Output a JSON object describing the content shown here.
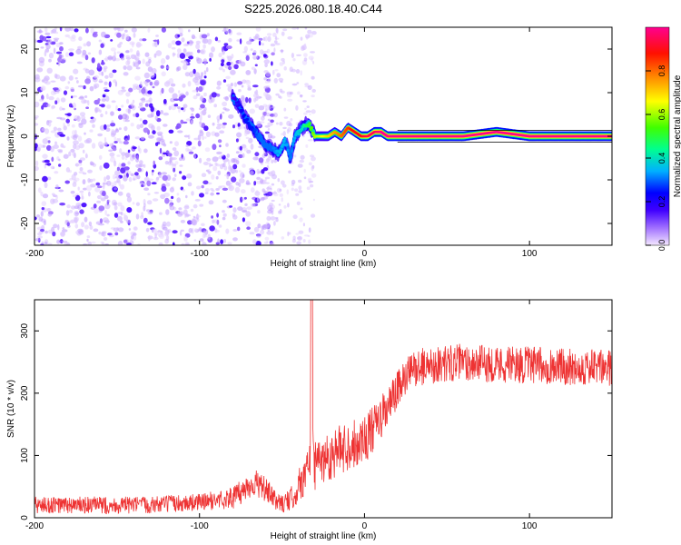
{
  "page": {
    "title": "S225.2026.080.18.40.C44"
  },
  "chart_data": [
    {
      "type": "heatmap",
      "title": "S225.2026.080.18.40.C44",
      "xlabel": "Height of straight line (km)",
      "ylabel": "Frequency (Hz)",
      "xlim": [
        -200,
        150
      ],
      "ylim": [
        -25,
        25
      ],
      "x_ticks": [
        -200,
        -100,
        0,
        100
      ],
      "y_ticks": [
        -20,
        -10,
        0,
        10,
        20
      ],
      "colorbar": {
        "label": "Normalized spectral amplitude",
        "range": [
          0,
          1
        ],
        "ticks": [
          "0.0",
          "0.2",
          "0.4",
          "0.6",
          "0.8"
        ],
        "colors": [
          "#f0e0ff",
          "#8a2be2",
          "#0000ff",
          "#00bfff",
          "#00ff80",
          "#7fff00",
          "#ffff00",
          "#ff8000",
          "#ff0000",
          "#ff0090"
        ]
      },
      "ridge": {
        "x": [
          -80,
          -76,
          -72,
          -68,
          -64,
          -60,
          -56,
          -52,
          -48,
          -45,
          -42,
          -38,
          -34,
          -30,
          -26,
          -22,
          -18,
          -14,
          -10,
          -6,
          -2,
          2,
          6,
          10,
          14,
          20,
          40,
          60,
          80,
          100,
          120,
          150
        ],
        "freq": [
          9,
          7,
          4,
          2,
          0,
          -2,
          -3,
          -4,
          -1,
          -5,
          0,
          2,
          3,
          0,
          0,
          0,
          1,
          0,
          2,
          1,
          0,
          0,
          1,
          1,
          0,
          0,
          0,
          0,
          1,
          0,
          0,
          0
        ],
        "amplitude": [
          0.15,
          0.2,
          0.25,
          0.25,
          0.3,
          0.3,
          0.3,
          0.35,
          0.35,
          0.3,
          0.35,
          0.4,
          0.5,
          0.6,
          0.65,
          0.7,
          0.75,
          0.8,
          0.85,
          0.9,
          0.9,
          0.95,
          0.95,
          1.0,
          1.0,
          1.0,
          1.0,
          1.0,
          1.0,
          1.0,
          1.0,
          1.0
        ]
      },
      "noise_region_km": [
        -200,
        -60
      ],
      "sparse_noise_region_km": [
        -60,
        -30
      ]
    },
    {
      "type": "line",
      "xlabel": "Height of straight line (km)",
      "ylabel": "SNR (10 * v/v)",
      "xlim": [
        -200,
        150
      ],
      "ylim": [
        0,
        350
      ],
      "x_ticks": [
        -200,
        -100,
        0,
        100
      ],
      "y_ticks": [
        0,
        100,
        200,
        300
      ],
      "color": "#ee3333",
      "series": [
        {
          "name": "SNR",
          "x": [
            -200,
            -180,
            -160,
            -140,
            -120,
            -100,
            -90,
            -80,
            -75,
            -70,
            -65,
            -60,
            -55,
            -50,
            -45,
            -40,
            -35,
            -33,
            -32,
            -31,
            -30,
            -28,
            -25,
            -20,
            -15,
            -10,
            -5,
            0,
            5,
            10,
            15,
            20,
            25,
            30,
            40,
            50,
            60,
            70,
            80,
            90,
            100,
            110,
            120,
            130,
            140,
            150
          ],
          "mean": [
            20,
            20,
            20,
            20,
            22,
            25,
            28,
            32,
            40,
            52,
            55,
            45,
            30,
            22,
            28,
            50,
            75,
            90,
            350,
            100,
            80,
            90,
            95,
            100,
            110,
            115,
            120,
            128,
            140,
            160,
            180,
            205,
            225,
            240,
            245,
            248,
            250,
            248,
            247,
            246,
            245,
            244,
            243,
            242,
            241,
            240
          ],
          "noise_amp": [
            14,
            14,
            14,
            14,
            14,
            14,
            15,
            18,
            20,
            22,
            22,
            20,
            16,
            14,
            18,
            28,
            36,
            40,
            0,
            40,
            40,
            40,
            40,
            40,
            40,
            40,
            40,
            40,
            38,
            36,
            34,
            32,
            30,
            30,
            30,
            30,
            30,
            30,
            30,
            30,
            30,
            30,
            30,
            30,
            30,
            30
          ]
        }
      ]
    }
  ]
}
